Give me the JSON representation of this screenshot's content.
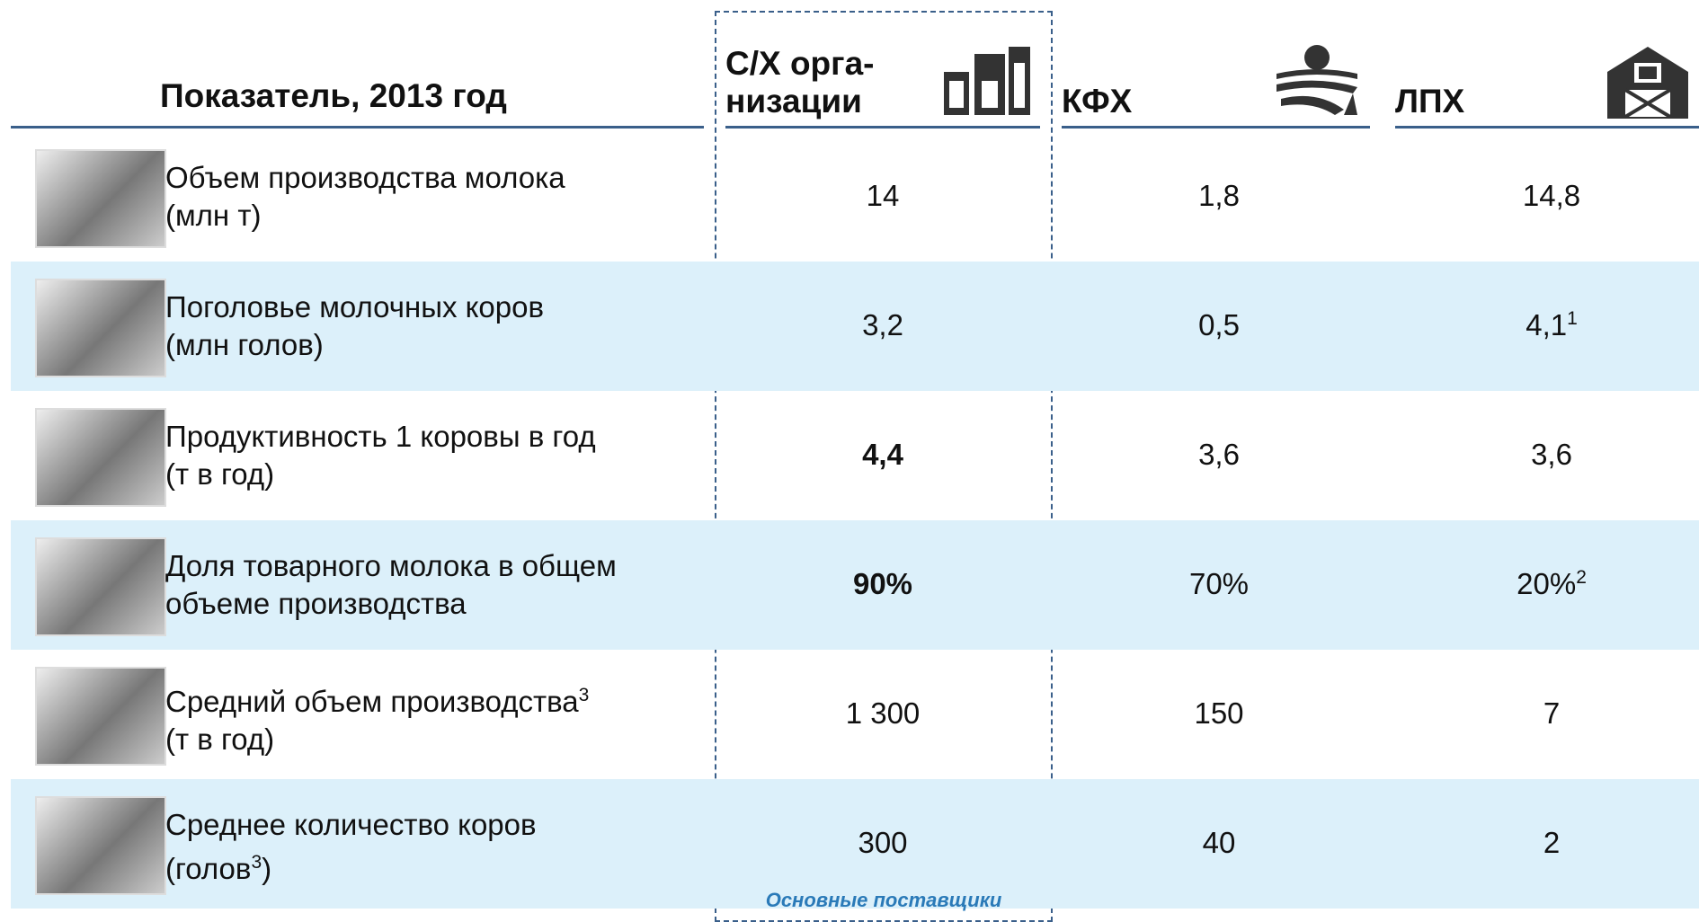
{
  "header": {
    "indicator": "Показатель, 2013 год",
    "columns": [
      {
        "lines": [
          "С/Х орга-",
          "низации"
        ]
      },
      {
        "lines": [
          "КФХ"
        ]
      },
      {
        "lines": [
          "ЛПХ"
        ]
      }
    ]
  },
  "rows": [
    {
      "label": [
        [
          {
            "text": "Объем производства молока"
          }
        ],
        [
          {
            "text": "(млн т)"
          }
        ]
      ],
      "values": [
        {
          "text": "14"
        },
        {
          "text": "1,8"
        },
        {
          "text": "14,8"
        }
      ]
    },
    {
      "label": [
        [
          {
            "text": "Поголовье молочных коров"
          }
        ],
        [
          {
            "text": "(млн голов)"
          }
        ]
      ],
      "values": [
        {
          "text": "3,2"
        },
        {
          "text": "0,5"
        },
        {
          "text": "4,1",
          "sup": "1"
        }
      ]
    },
    {
      "label": [
        [
          {
            "text": "Продуктивность 1 коровы в год"
          }
        ],
        [
          {
            "text": "(т в год)"
          }
        ]
      ],
      "values": [
        {
          "text": "4,4",
          "bold": true
        },
        {
          "text": "3,6"
        },
        {
          "text": "3,6"
        }
      ]
    },
    {
      "label": [
        [
          {
            "text": "Доля товарного молока в общем"
          }
        ],
        [
          {
            "text": "объеме производства"
          }
        ]
      ],
      "values": [
        {
          "text": "90%",
          "bold": true
        },
        {
          "text": "70%"
        },
        {
          "text": "20%",
          "sup": "2"
        }
      ]
    },
    {
      "label": [
        [
          {
            "text": "Средний объем производства"
          },
          {
            "text": "3",
            "sup": true
          }
        ],
        [
          {
            "text": "(т в год)"
          }
        ]
      ],
      "values": [
        {
          "text": "1 300"
        },
        {
          "text": "150"
        },
        {
          "text": "7"
        }
      ]
    },
    {
      "label": [
        [
          {
            "text": "Среднее количество коров"
          }
        ],
        [
          {
            "text": "(голов"
          },
          {
            "text": "3",
            "sup": true
          },
          {
            "text": ")"
          }
        ]
      ],
      "values": [
        {
          "text": "300"
        },
        {
          "text": "40"
        },
        {
          "text": "2"
        }
      ]
    }
  ],
  "footer": "Основные поставщики"
}
